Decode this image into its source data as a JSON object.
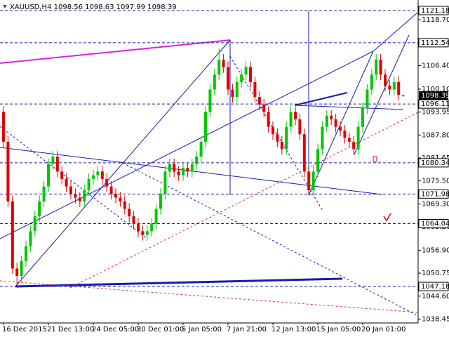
{
  "chart_data": {
    "type": "candlestick",
    "title": "XAUUSD,H4  1098.56 1098.63 1097.99 1098.39",
    "categories": [
      "16 Dec 2015",
      null,
      null,
      null,
      null,
      null,
      null,
      null,
      null,
      null,
      "21 Dec 13:00",
      null,
      null,
      null,
      null,
      null,
      null,
      null,
      null,
      null,
      "24 Dec 05:00",
      null,
      null,
      null,
      null,
      null,
      null,
      null,
      null,
      null,
      "30 Dec 01:00",
      null,
      null,
      null,
      null,
      null,
      null,
      null,
      null,
      null,
      "5 Jan 05:00",
      null,
      null,
      null,
      null,
      null,
      null,
      null,
      null,
      null,
      "7 Jan 21:00",
      null,
      null,
      null,
      null,
      null,
      null,
      null,
      null,
      null,
      "12 Jan 13:00",
      null,
      null,
      null,
      null,
      null,
      null,
      null,
      null,
      null,
      "15 Jan 05:00",
      null,
      null,
      null,
      null,
      null,
      null,
      null,
      null,
      null,
      "20 Jan 01:00",
      null,
      null,
      null,
      null,
      null,
      null,
      null,
      null,
      null
    ],
    "open": [
      1094,
      1086,
      1070,
      1052,
      1050,
      1054,
      1058,
      1062,
      1066,
      1070,
      1074,
      1080,
      1082,
      1078,
      1076,
      1074,
      1072,
      1071,
      1070,
      1073,
      1076,
      1077,
      1078,
      1076,
      1074,
      1072,
      1071,
      1070,
      1068,
      1066,
      1064,
      1062,
      1061,
      1062,
      1064,
      1068,
      1072,
      1078,
      1080,
      1078,
      1077,
      1079,
      1078,
      1080,
      1082,
      1086,
      1094,
      1100,
      1104,
      1108,
      1106,
      1100,
      1098,
      1102,
      1104,
      1106,
      1102,
      1098,
      1096,
      1094,
      1090,
      1088,
      1086,
      1084,
      1090,
      1094,
      1092,
      1088,
      1078,
      1073,
      1078,
      1084,
      1090,
      1093,
      1092,
      1090,
      1089,
      1087,
      1086,
      1084,
      1090,
      1095,
      1100,
      1104,
      1108,
      1104,
      1101,
      1100,
      1102,
      1098.56
    ],
    "high": [
      1095.5,
      1087.5,
      1071.5,
      1053.5,
      1055.5,
      1059.5,
      1063.5,
      1067.5,
      1071.5,
      1075.5,
      1081.5,
      1083.5,
      1083.5,
      1079.5,
      1077.5,
      1075.5,
      1073.5,
      1072.5,
      1074.5,
      1077.5,
      1078.5,
      1079.5,
      1079.5,
      1077.5,
      1075.5,
      1073.5,
      1072.5,
      1071.5,
      1069.5,
      1067.5,
      1065.5,
      1063.5,
      1063.5,
      1065.5,
      1069.5,
      1073.5,
      1079.5,
      1081.5,
      1081.5,
      1079.5,
      1080.5,
      1080.5,
      1081.5,
      1083.5,
      1087.5,
      1095.5,
      1101.5,
      1105.5,
      1111,
      1109.5,
      1107.5,
      1101.5,
      1103.5,
      1105.5,
      1107.5,
      1107.5,
      1103.5,
      1099.5,
      1097.5,
      1095.5,
      1091.5,
      1089.5,
      1087.5,
      1091.5,
      1095.5,
      1095.5,
      1093.5,
      1089.5,
      1079.5,
      1079.5,
      1085.5,
      1091.5,
      1094.5,
      1094.5,
      1093.5,
      1091.5,
      1090.5,
      1088.5,
      1087.5,
      1091.5,
      1096.5,
      1101.5,
      1105.5,
      1109.5,
      1109.5,
      1105.5,
      1102.5,
      1103.5,
      1103.5,
      1098.63
    ],
    "low": [
      1084.5,
      1068.5,
      1050.5,
      1047.5,
      1048.5,
      1052.5,
      1056.5,
      1060.5,
      1064.5,
      1068.5,
      1072.5,
      1078.5,
      1076.5,
      1074.5,
      1072.5,
      1070.5,
      1069.5,
      1068.5,
      1068.5,
      1071.5,
      1074.5,
      1075.5,
      1074.5,
      1072.5,
      1070.5,
      1069.5,
      1068.5,
      1066.5,
      1064.5,
      1062.5,
      1060.5,
      1059.5,
      1059.5,
      1060.5,
      1062.5,
      1066.5,
      1070.5,
      1076.5,
      1076.5,
      1075.5,
      1075.5,
      1076.5,
      1076.5,
      1078.5,
      1080.5,
      1084.5,
      1092.5,
      1098.5,
      1102.5,
      1104.5,
      1098.5,
      1096.5,
      1096.5,
      1100.5,
      1102.5,
      1100.5,
      1096.5,
      1094.5,
      1092.5,
      1088.5,
      1086.5,
      1084.5,
      1082.5,
      1082.5,
      1088.5,
      1090.5,
      1086.5,
      1076.5,
      1071.5,
      1071.5,
      1076.5,
      1082.5,
      1088.5,
      1090.5,
      1088.5,
      1087.5,
      1085.5,
      1084.5,
      1082.5,
      1082.5,
      1088.5,
      1093.5,
      1098.5,
      1102.5,
      1102.5,
      1099.5,
      1098.5,
      1098.5,
      1097,
      1097.99
    ],
    "close": [
      1086,
      1070,
      1052,
      1050,
      1054,
      1058,
      1062,
      1066,
      1070,
      1074,
      1080,
      1082,
      1078,
      1076,
      1074,
      1072,
      1071,
      1070,
      1073,
      1076,
      1077,
      1078,
      1076,
      1074,
      1072,
      1071,
      1070,
      1068,
      1066,
      1064,
      1062,
      1061,
      1062,
      1064,
      1068,
      1072,
      1078,
      1080,
      1078,
      1077,
      1079,
      1078,
      1080,
      1082,
      1086,
      1094,
      1100,
      1104,
      1108,
      1106,
      1100,
      1098,
      1102,
      1104,
      1106,
      1102,
      1098,
      1096,
      1094,
      1090,
      1088,
      1086,
      1084,
      1090,
      1094,
      1092,
      1088,
      1078,
      1073,
      1078,
      1084,
      1090,
      1093,
      1092,
      1090,
      1089,
      1087,
      1086,
      1084,
      1090,
      1095,
      1100,
      1104,
      1108,
      1104,
      1101,
      1100,
      1102,
      1098.56,
      1098.39
    ],
    "up_color": "#00c800",
    "down_color": "#e00000",
    "ylim": [
      1037.4,
      1124.0
    ],
    "yticks": [
      {
        "value": 1118.7,
        "label": "1118.70"
      },
      {
        "value": 1106.4,
        "label": "1106.40"
      },
      {
        "value": 1100.1,
        "label": "1100.10"
      },
      {
        "value": 1093.95,
        "label": "1093.95"
      },
      {
        "value": 1087.8,
        "label": "1087.80"
      },
      {
        "value": 1081.65,
        "label": "1081.65"
      },
      {
        "value": 1075.5,
        "label": "1075.50"
      },
      {
        "value": 1069.3,
        "label": "1069.30"
      },
      {
        "value": 1063.2,
        "label": "1063.20"
      },
      {
        "value": 1056.9,
        "label": "1056.90"
      },
      {
        "value": 1050.75,
        "label": "1050.75"
      },
      {
        "value": 1044.6,
        "label": "1044.60"
      },
      {
        "value": 1038.45,
        "label": "1038.45"
      }
    ],
    "levels": [
      {
        "value": 1121.18,
        "label": "1121.18"
      },
      {
        "value": 1112.54,
        "label": "1112.54"
      },
      {
        "value": 1096.11,
        "label": "1096.11"
      },
      {
        "value": 1080.34,
        "label": "1080.34"
      },
      {
        "value": 1071.98,
        "label": "1071.98"
      },
      {
        "value": 1064.04,
        "label": "1064.04"
      },
      {
        "value": 1047.18,
        "label": "1047.18"
      }
    ],
    "level_color": "#1a1ab0",
    "current_price": {
      "value": 1098.39,
      "label": "1098.39"
    },
    "grid": false
  }
}
